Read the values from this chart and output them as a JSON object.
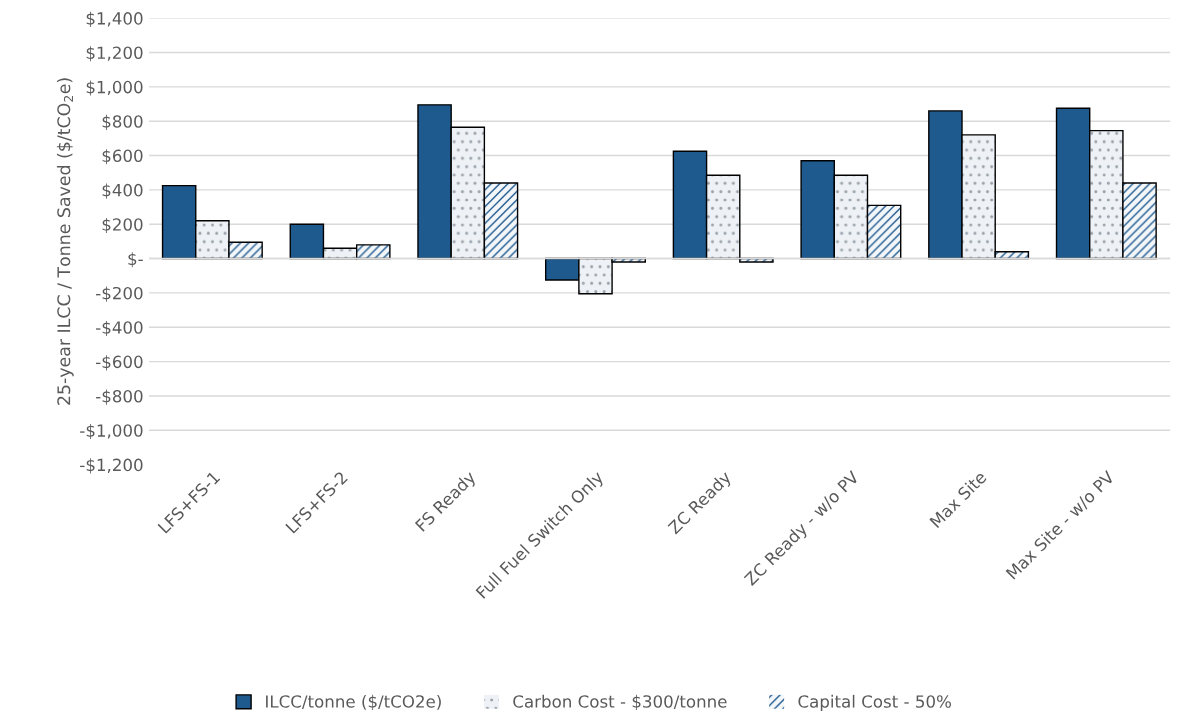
{
  "chart_data": {
    "type": "bar",
    "ylabel": "25-year ILCC / Tonne Saved ($/tCO$_{2}$e)",
    "categories": [
      "LFS+FS-1",
      "LFS+FS-2",
      "FS Ready",
      "Full Fuel Switch Only",
      "ZC Ready",
      "ZC Ready - w/o PV",
      "Max Site",
      "Max Site - w/o PV"
    ],
    "series": [
      {
        "name": "ILCC/tonne ($/tCO2e)",
        "color": "#1f5a8f",
        "values": [
          425,
          200,
          895,
          -125,
          625,
          570,
          860,
          875
        ]
      },
      {
        "name": "Carbon Cost - $300/tonne",
        "color": "#eef2f6",
        "values": [
          220,
          60,
          765,
          -205,
          485,
          485,
          720,
          745
        ]
      },
      {
        "name": "Capital Cost - 50%",
        "color": "#1f5a8f",
        "values": [
          95,
          80,
          440,
          -20,
          -20,
          310,
          40,
          440
        ]
      }
    ],
    "ylim": [
      -1200,
      1400
    ],
    "yticks": [
      {
        "value": -1200,
        "label": "-$1,200"
      },
      {
        "value": -1000,
        "label": "-$1,000"
      },
      {
        "value": -800,
        "label": "-$800"
      },
      {
        "value": -600,
        "label": "-$600"
      },
      {
        "value": -400,
        "label": "-$400"
      },
      {
        "value": -200,
        "label": "-$200"
      },
      {
        "value": 0,
        "label": "$-"
      },
      {
        "value": 200,
        "label": "$200"
      },
      {
        "value": 400,
        "label": "$400"
      },
      {
        "value": 600,
        "label": "$600"
      },
      {
        "value": 800,
        "label": "$800"
      },
      {
        "value": 1000,
        "label": "$1,000"
      },
      {
        "value": 1200,
        "label": "$1,200"
      },
      {
        "value": 1400,
        "label": "$1,400"
      }
    ],
    "grid": "y",
    "legend": "bottom"
  }
}
